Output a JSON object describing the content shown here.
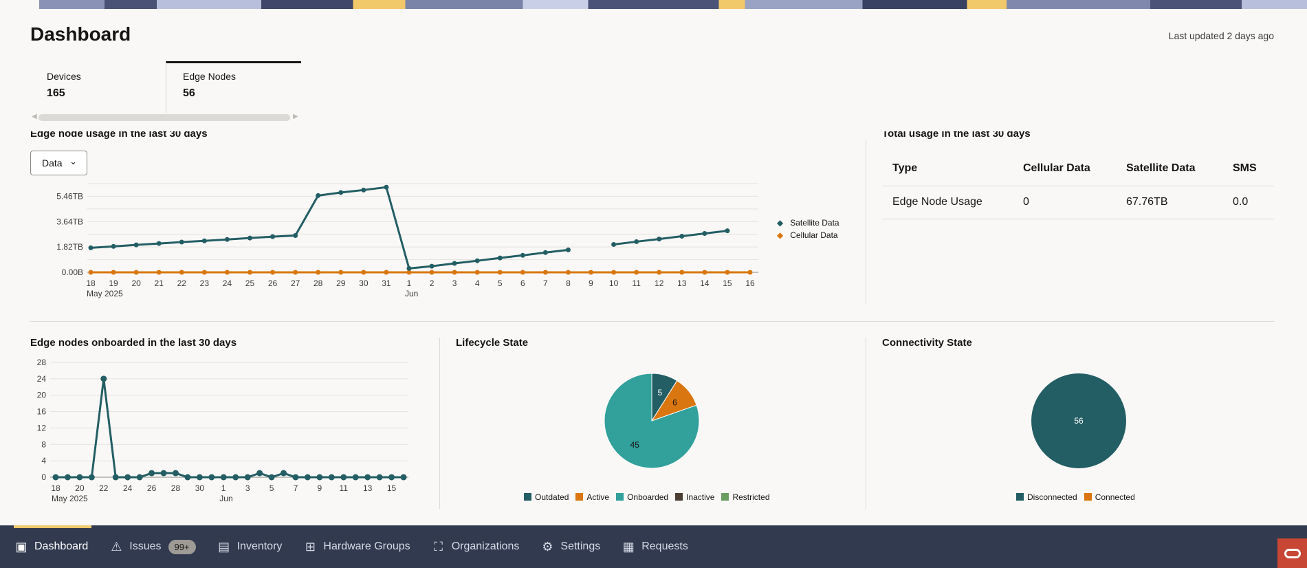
{
  "header": {
    "title": "Dashboard",
    "last_updated": "Last updated 2 days ago"
  },
  "tabs": [
    {
      "label": "Devices",
      "value": "165"
    },
    {
      "label": "Edge Nodes",
      "value": "56",
      "active": true
    }
  ],
  "usage_chart": {
    "title": "Edge node usage in the last 30 days",
    "dropdown_value": "Data"
  },
  "total_usage": {
    "title": "Total usage in the last 30 days",
    "columns": [
      "Type",
      "Cellular Data",
      "Satellite Data",
      "SMS"
    ],
    "rows": [
      [
        "Edge Node Usage",
        "0",
        "67.76TB",
        "0.0"
      ]
    ]
  },
  "onboarded_title": "Edge nodes onboarded in the last 30 days",
  "lifecycle_title": "Lifecycle State",
  "connectivity_title": "Connectivity State",
  "colors": {
    "teal_dark": "#235e64",
    "orange": "#d9760f",
    "teal": "#32a09b",
    "inactive": "#4b3f35",
    "restricted": "#6a9e61",
    "nav_bg": "#313a4f",
    "accent": "#f2c96a"
  },
  "chart_data": [
    {
      "type": "line",
      "x": [
        "18",
        "19",
        "20",
        "21",
        "22",
        "23",
        "24",
        "25",
        "26",
        "27",
        "28",
        "29",
        "30",
        "31",
        "1",
        "2",
        "3",
        "4",
        "5",
        "6",
        "7",
        "8",
        "9",
        "10",
        "11",
        "12",
        "13",
        "14",
        "15",
        "16"
      ],
      "x_group_labels": {
        "18": "May 2025",
        "1": "Jun"
      },
      "yticks": [
        "0.00B",
        "1.82TB",
        "3.64TB",
        "5.46TB"
      ],
      "ylim": [
        0,
        6.37
      ],
      "yunit": "TB",
      "grid": true,
      "legend": "right",
      "series": [
        {
          "name": "Satellite Data",
          "color": "#235e64",
          "values": [
            1.76,
            1.86,
            1.97,
            2.07,
            2.17,
            2.26,
            2.36,
            2.46,
            2.56,
            2.64,
            5.51,
            5.73,
            5.91,
            6.11,
            0.28,
            0.44,
            0.64,
            0.83,
            1.03,
            1.22,
            1.42,
            1.61,
            null,
            2.0,
            2.2,
            2.39,
            2.59,
            2.79,
            2.98,
            null
          ]
        },
        {
          "name": "Cellular Data",
          "color": "#d9760f",
          "values": [
            0,
            0,
            0,
            0,
            0,
            0,
            0,
            0,
            0,
            0,
            0,
            0,
            0,
            0,
            0,
            0,
            0,
            0,
            0,
            0,
            0,
            0,
            0,
            0,
            0,
            0,
            0,
            0,
            0,
            0
          ]
        }
      ]
    },
    {
      "type": "line",
      "x": [
        "18",
        "19",
        "20",
        "21",
        "22",
        "23",
        "24",
        "25",
        "26",
        "27",
        "28",
        "29",
        "30",
        "31",
        "1",
        "2",
        "3",
        "4",
        "5",
        "6",
        "7",
        "8",
        "9",
        "10",
        "11",
        "12",
        "13",
        "14",
        "15",
        "16"
      ],
      "xticks": [
        "18",
        "20",
        "22",
        "24",
        "26",
        "28",
        "30",
        "1",
        "3",
        "5",
        "7",
        "9",
        "11",
        "13",
        "15"
      ],
      "x_group_labels": {
        "18": "May 2025",
        "1": "Jun"
      },
      "yticks": [
        "0",
        "4",
        "8",
        "12",
        "16",
        "20",
        "24",
        "28"
      ],
      "ylim": [
        0,
        28
      ],
      "grid": true,
      "series": [
        {
          "color": "#235e64",
          "values": [
            0,
            0,
            0,
            0,
            24,
            0,
            0,
            0,
            1,
            1,
            1,
            0,
            0,
            0,
            0,
            0,
            0,
            1,
            0,
            1,
            0,
            0,
            0,
            0,
            0,
            0,
            0,
            0,
            0,
            0
          ]
        }
      ]
    },
    {
      "type": "pie",
      "slices": [
        {
          "name": "Outdated",
          "value": 5,
          "color": "#235e64"
        },
        {
          "name": "Active",
          "value": 6,
          "color": "#d9760f"
        },
        {
          "name": "Onboarded",
          "value": 45,
          "color": "#32a09b"
        },
        {
          "name": "Inactive",
          "value": 0,
          "color": "#4b3f35"
        },
        {
          "name": "Restricted",
          "value": 0,
          "color": "#6a9e61"
        }
      ]
    },
    {
      "type": "pie",
      "slices": [
        {
          "name": "Disconnected",
          "value": 56,
          "color": "#235e64"
        },
        {
          "name": "Connected",
          "value": 0,
          "color": "#d9760f"
        }
      ]
    }
  ],
  "nav": {
    "items": [
      {
        "label": "Dashboard",
        "icon": "dashboard-icon",
        "active": true
      },
      {
        "label": "Issues",
        "icon": "warning-icon",
        "badge": "99+"
      },
      {
        "label": "Inventory",
        "icon": "inventory-icon"
      },
      {
        "label": "Hardware Groups",
        "icon": "hardware-groups-icon"
      },
      {
        "label": "Organizations",
        "icon": "organizations-icon"
      },
      {
        "label": "Settings",
        "icon": "gear-icon"
      },
      {
        "label": "Requests",
        "icon": "requests-icon"
      }
    ]
  }
}
